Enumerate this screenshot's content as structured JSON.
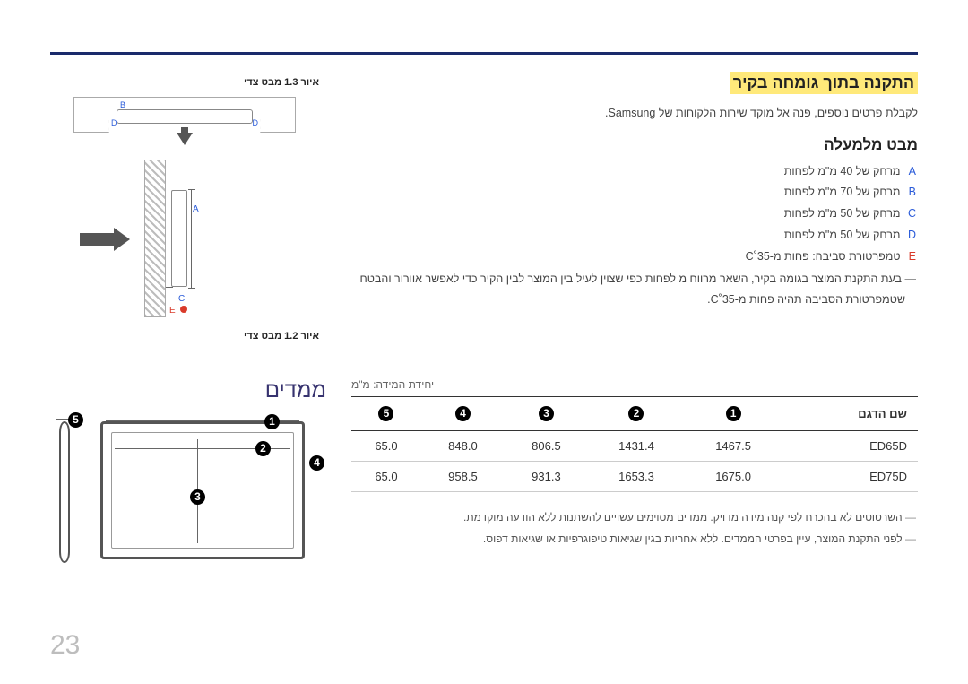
{
  "page_number": "23",
  "rule_color": "#1a2a6b",
  "section_install": {
    "title": "התקנה בתוך גומחה בקיר",
    "subtitle": "לקבלת פרטים נוספים, פנה אל מוקד שירות הלקוחות של Samsung.",
    "top_view_heading": "מבט מלמעלה",
    "specs": [
      {
        "label": "A",
        "color": "#2a5bd9",
        "text": "מרחק של 40 מ\"מ לפחות"
      },
      {
        "label": "B",
        "color": "#2a5bd9",
        "text": "מרחק של 70 מ\"מ לפחות"
      },
      {
        "label": "C",
        "color": "#2a5bd9",
        "text": "מרחק של 50 מ\"מ לפחות"
      },
      {
        "label": "D",
        "color": "#2a5bd9",
        "text": "מרחק של 50 מ\"מ לפחות"
      },
      {
        "label": "E",
        "color": "#d93a2a",
        "text": "טמפרטורת סביבה: פחות מ-35˚C"
      }
    ],
    "note": "בעת התקנת המוצר בגומה בקיר, השאר מרווח מ לפחות כפי שצוין לעיל בין המוצר לבין הקיר כדי לאפשר אוורור והבטח שטמפרטורת הסביבה תהיה פחות מ-35˚C."
  },
  "figures": {
    "fig13_label": "איור 1.3 מבט צדי",
    "fig12_label": "איור 1.2 מבט צדי",
    "B": "B",
    "D": "D",
    "A": "A",
    "C": "C",
    "E": "E"
  },
  "dimensions": {
    "heading": "ממדים",
    "unit_note": "יחידת המידה: מ\"מ",
    "col_model": "שם הדגם",
    "circles": [
      "1",
      "2",
      "3",
      "4",
      "5"
    ],
    "rows": [
      {
        "model": "ED65D",
        "v": [
          "1467.5",
          "1431.4",
          "806.5",
          "848.0",
          "65.0"
        ]
      },
      {
        "model": "ED75D",
        "v": [
          "1675.0",
          "1653.3",
          "931.3",
          "958.5",
          "65.0"
        ]
      }
    ],
    "footnotes": [
      "השרטוטים לא בהכרח לפי קנה מידה מדויק. ממדים מסוימים עשויים להשתנות ללא הודעה מוקדמת.",
      "לפני התקנת המוצר, עיין בפרטי הממדים. ללא אחריות בגין שגיאות טיפוגרפיות או שגיאות דפוס."
    ]
  }
}
